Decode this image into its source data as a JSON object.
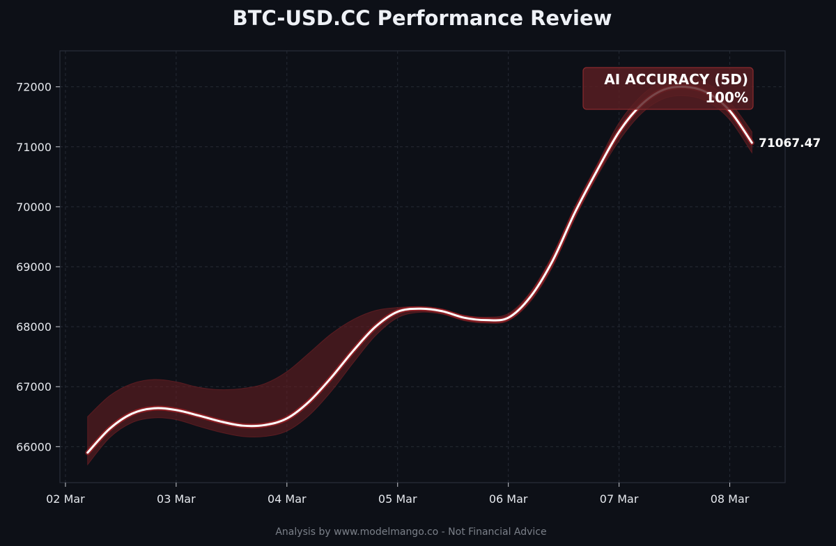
{
  "chart_data": {
    "type": "line",
    "title": "BTC-USD.CC Performance Review",
    "xlabel": "",
    "ylabel": "",
    "x_tick_labels": [
      "02 Mar",
      "03 Mar",
      "04 Mar",
      "05 Mar",
      "06 Mar",
      "07 Mar",
      "08 Mar"
    ],
    "y_ticks": [
      66000,
      67000,
      68000,
      69000,
      70000,
      71000,
      72000
    ],
    "xlim": [
      -0.05,
      6.5
    ],
    "ylim": [
      65400,
      72600
    ],
    "grid": true,
    "series": [
      {
        "x": [
          0.2,
          0.4,
          0.6,
          0.8,
          1.0,
          1.2,
          1.4,
          1.6,
          1.8,
          2.0,
          2.2,
          2.4,
          2.6,
          2.8,
          3.0,
          3.2,
          3.4,
          3.6,
          3.8,
          4.0,
          4.2,
          4.4,
          4.6,
          4.8,
          5.0,
          5.2,
          5.4,
          5.6,
          5.8,
          6.0,
          6.2
        ],
        "values": [
          65900,
          66300,
          66550,
          66640,
          66610,
          66520,
          66420,
          66350,
          66360,
          66470,
          66750,
          67150,
          67600,
          68000,
          68250,
          68300,
          68260,
          68150,
          68110,
          68150,
          68500,
          69100,
          69900,
          70600,
          71250,
          71700,
          71950,
          72000,
          71900,
          71600,
          71067.47
        ],
        "band_upper": [
          66500,
          66850,
          67050,
          67120,
          67080,
          66990,
          66950,
          66970,
          67050,
          67250,
          67560,
          67880,
          68120,
          68270,
          68320,
          68330,
          68290,
          68190,
          68160,
          68220,
          68580,
          69200,
          70000,
          70700,
          71400,
          71850,
          72100,
          72150,
          72050,
          71750,
          71250
        ],
        "band_lower": [
          65700,
          66150,
          66400,
          66480,
          66450,
          66340,
          66240,
          66170,
          66170,
          66260,
          66520,
          66920,
          67400,
          67850,
          68150,
          68240,
          68210,
          68100,
          68060,
          68100,
          68420,
          69000,
          69800,
          70500,
          71100,
          71550,
          71800,
          71850,
          71750,
          71450,
          70900
        ]
      }
    ],
    "end_label": "71067.47",
    "annotation": {
      "line1": "AI ACCURACY (5D)",
      "line2": "100%",
      "placement": "top-right"
    },
    "footer": "Analysis by www.modelmango.co - Not Financial Advice",
    "colors": {
      "background": "#0d1017",
      "line": "#ffffff",
      "line_glow": "#c8262a",
      "band": "#6e1f22",
      "annotation_bg": "#5a1e22",
      "annotation_border": "#8a2a2e"
    }
  }
}
